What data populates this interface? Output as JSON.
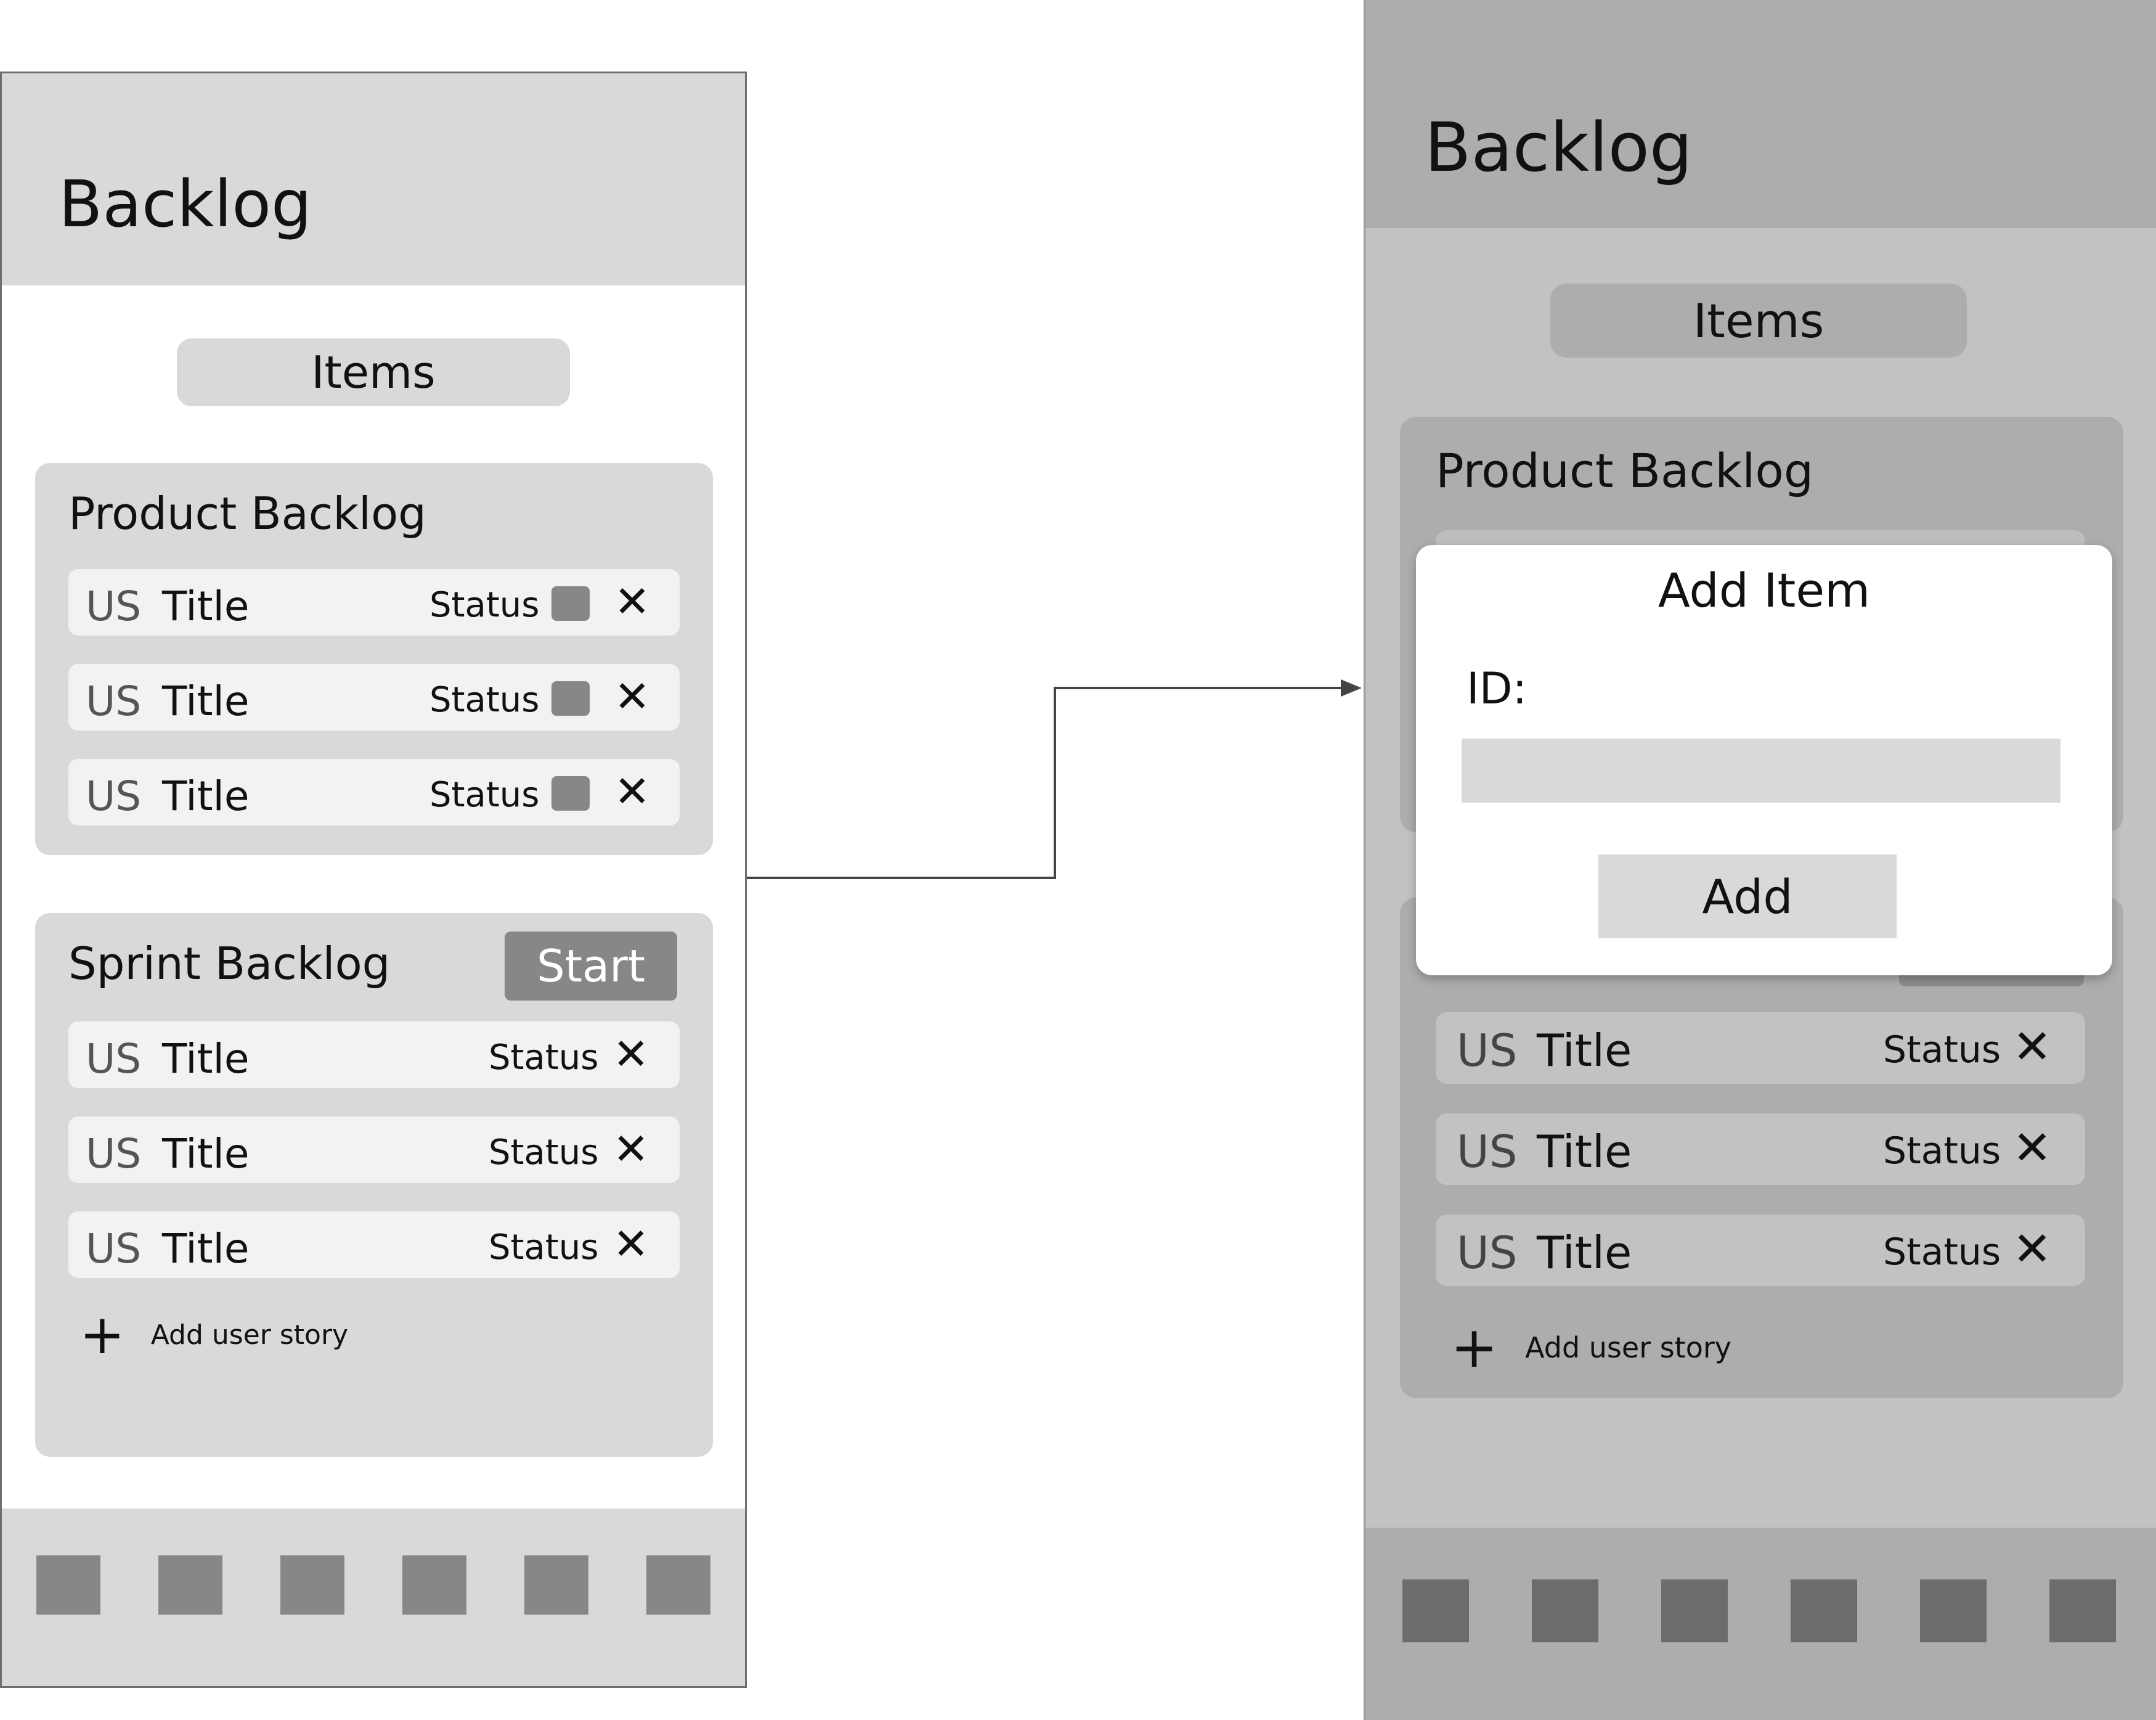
{
  "left_screen": {
    "app_title": "Backlog",
    "items_button": "Items",
    "product_backlog": {
      "title": "Product Backlog",
      "rows": [
        {
          "prefix": "US",
          "title": "Title",
          "status": "Status"
        },
        {
          "prefix": "US",
          "title": "Title",
          "status": "Status"
        },
        {
          "prefix": "US",
          "title": "Title",
          "status": "Status"
        }
      ]
    },
    "sprint_backlog": {
      "title": "Sprint Backlog",
      "start_button": "Start",
      "rows": [
        {
          "prefix": "US",
          "title": "Title",
          "status": "Status"
        },
        {
          "prefix": "US",
          "title": "Title",
          "status": "Status"
        },
        {
          "prefix": "US",
          "title": "Title",
          "status": "Status"
        }
      ],
      "add_user_story": "Add user story"
    },
    "bottom_nav_count": 6
  },
  "right_screen": {
    "app_title": "Backlog",
    "items_button": "Items",
    "product_backlog": {
      "title": "Product Backlog"
    },
    "sprint_backlog": {
      "rows": [
        {
          "prefix": "US",
          "title": "Title",
          "status": "Status"
        },
        {
          "prefix": "US",
          "title": "Title",
          "status": "Status"
        },
        {
          "prefix": "US",
          "title": "Title",
          "status": "Status"
        }
      ],
      "add_user_story": "Add user story"
    },
    "add_item_modal": {
      "title": "Add Item",
      "id_label": "ID:",
      "id_value": "",
      "add_button": "Add"
    },
    "bottom_nav_count": 6
  },
  "icons": {
    "close": "close-icon",
    "add": "plus-icon",
    "status_square": "status-square-icon",
    "nav_square": "nav-square-icon"
  },
  "colors": {
    "header_light": "#d9d9d9",
    "overlay": "#c2c2c2",
    "dark_gray": "#878787",
    "row_background": "#f2f2f2"
  }
}
